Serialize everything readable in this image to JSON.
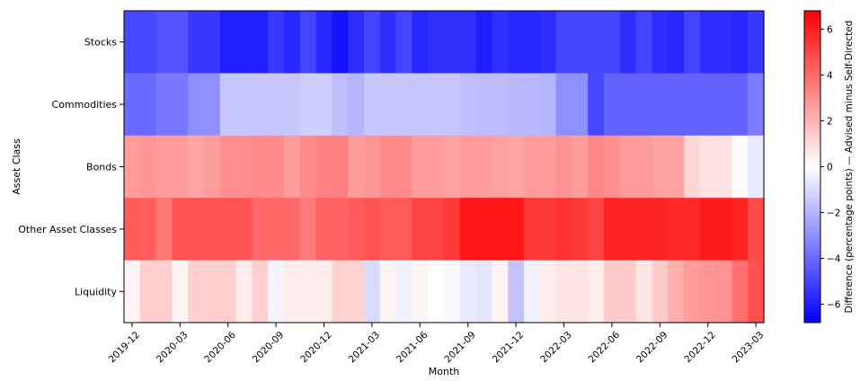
{
  "chart_data": {
    "type": "heatmap",
    "title": "",
    "xlabel": "Month",
    "ylabel": "Asset Class",
    "colorbar_label": "Difference (percentage points) — Advised minus Self-Directed",
    "colormap": "bwr",
    "vmin": -6.8,
    "vmax": 6.8,
    "colorbar_ticks": [
      "6",
      "4",
      "2",
      "0",
      "−2",
      "−4",
      "−6"
    ],
    "colorbar_tick_values": [
      6,
      4,
      2,
      0,
      -2,
      -4,
      -6
    ],
    "colors": {
      "low": "#0000ff",
      "mid": "#ffffff",
      "high": "#ff0000"
    },
    "rows": [
      "Stocks",
      "Commodities",
      "Bonds",
      "Other Asset Classes",
      "Liquidity"
    ],
    "x_tick_labels": [
      "2019-12",
      "2020-03",
      "2020-06",
      "2020-09",
      "2020-12",
      "2021-03",
      "2021-06",
      "2021-09",
      "2021-12",
      "2022-03",
      "2022-06",
      "2022-09",
      "2022-12",
      "2023-03"
    ],
    "x_tick_positions": [
      0,
      3,
      6,
      9,
      12,
      15,
      18,
      21,
      24,
      27,
      30,
      33,
      36,
      39
    ],
    "months": [
      "2019-12",
      "2020-01",
      "2020-02",
      "2020-03",
      "2020-04",
      "2020-05",
      "2020-06",
      "2020-07",
      "2020-08",
      "2020-09",
      "2020-10",
      "2020-11",
      "2020-12",
      "2021-01",
      "2021-02",
      "2021-03",
      "2021-04",
      "2021-05",
      "2021-06",
      "2021-07",
      "2021-08",
      "2021-09",
      "2021-10",
      "2021-11",
      "2021-12",
      "2022-01",
      "2022-02",
      "2022-03",
      "2022-04",
      "2022-05",
      "2022-06",
      "2022-07",
      "2022-08",
      "2022-09",
      "2022-10",
      "2022-11",
      "2022-12",
      "2023-01",
      "2023-02",
      "2023-03"
    ],
    "values": [
      [
        -4.9,
        -4.9,
        -4.6,
        -4.6,
        -5.3,
        -5.3,
        -6.0,
        -6.0,
        -6.0,
        -5.3,
        -5.8,
        -5.0,
        -5.8,
        -6.3,
        -5.6,
        -5.0,
        -5.6,
        -5.0,
        -5.8,
        -5.5,
        -5.5,
        -5.5,
        -6.0,
        -5.5,
        -5.8,
        -5.8,
        -5.6,
        -5.0,
        -5.0,
        -5.0,
        -5.0,
        -5.6,
        -5.0,
        -5.6,
        -5.8,
        -5.0,
        -5.6,
        -5.6,
        -5.8,
        -5.3
      ],
      [
        -4.0,
        -4.0,
        -3.6,
        -3.6,
        -3.0,
        -3.0,
        -1.5,
        -1.5,
        -1.5,
        -1.5,
        -1.5,
        -1.3,
        -1.3,
        -1.7,
        -2.0,
        -1.5,
        -1.5,
        -1.5,
        -1.5,
        -1.5,
        -1.5,
        -1.7,
        -1.8,
        -1.8,
        -1.9,
        -1.9,
        -2.0,
        -3.0,
        -3.0,
        -4.9,
        -4.2,
        -4.2,
        -4.2,
        -4.2,
        -4.2,
        -4.2,
        -4.2,
        -4.2,
        -4.2,
        -3.5
      ],
      [
        2.6,
        2.8,
        2.6,
        2.6,
        2.4,
        2.6,
        3.0,
        3.0,
        3.1,
        3.1,
        2.6,
        3.1,
        3.3,
        3.4,
        2.6,
        2.8,
        3.1,
        3.1,
        2.6,
        2.6,
        2.5,
        2.7,
        2.6,
        2.5,
        2.4,
        2.6,
        2.6,
        2.9,
        2.6,
        3.2,
        3.0,
        2.7,
        2.7,
        2.5,
        2.5,
        1.1,
        0.8,
        0.8,
        0.1,
        -0.6
      ],
      [
        4.4,
        4.3,
        3.6,
        4.6,
        4.6,
        4.6,
        4.6,
        4.6,
        4.0,
        4.0,
        4.0,
        3.5,
        4.2,
        4.2,
        4.4,
        4.6,
        4.4,
        4.4,
        5.0,
        5.0,
        5.3,
        6.2,
        6.2,
        6.2,
        6.2,
        5.3,
        5.3,
        5.5,
        5.3,
        5.0,
        5.8,
        5.8,
        5.8,
        5.8,
        5.7,
        5.7,
        6.1,
        6.1,
        5.9,
        4.8
      ],
      [
        0.3,
        1.3,
        1.3,
        0.3,
        1.3,
        1.3,
        1.3,
        0.5,
        1.3,
        -0.3,
        0.5,
        0.5,
        0.5,
        1.2,
        1.2,
        -1.0,
        0.3,
        -0.4,
        0.3,
        0.0,
        -0.2,
        -0.6,
        -0.7,
        0.3,
        -1.6,
        -0.4,
        0.5,
        0.7,
        0.7,
        0.5,
        1.4,
        1.4,
        0.7,
        1.4,
        2.2,
        2.6,
        2.8,
        2.9,
        3.8,
        4.7
      ]
    ]
  }
}
